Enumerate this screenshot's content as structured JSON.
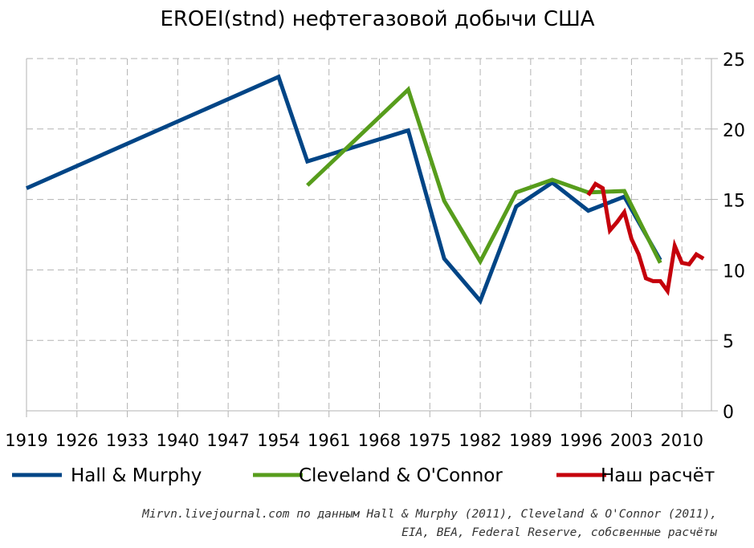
{
  "chart_data": {
    "type": "line",
    "title": "EROEI(stnd) нефтегазовой добычи США",
    "xlabel": "",
    "ylabel": "",
    "xlim": [
      1919,
      2014.1
    ],
    "ylim": [
      0,
      25
    ],
    "x_ticks": [
      1919,
      1926,
      1933,
      1940,
      1947,
      1954,
      1961,
      1968,
      1975,
      1982,
      1989,
      1996,
      2003,
      2010
    ],
    "y_ticks": [
      0,
      5,
      10,
      15,
      20,
      25
    ],
    "y_axis_side": "right",
    "grid": true,
    "legend_position": "bottom",
    "series": [
      {
        "name": "Hall & Murphy",
        "color": "#004586",
        "x": [
          1919,
          1954,
          1958,
          1972,
          1977,
          1982,
          1987,
          1992,
          1997,
          2002,
          2007
        ],
        "y": [
          15.8,
          23.7,
          17.7,
          19.9,
          10.8,
          7.8,
          14.5,
          16.2,
          14.2,
          15.2,
          10.7
        ]
      },
      {
        "name": "Cleveland & O'Connor",
        "color": "#579d1c",
        "x": [
          1958,
          1972,
          1977,
          1982,
          1987,
          1992,
          1997,
          2002,
          2007
        ],
        "y": [
          16.0,
          22.8,
          14.9,
          10.6,
          15.5,
          16.4,
          15.5,
          15.6,
          10.5
        ]
      },
      {
        "name": "Наш расчёт",
        "color": "#c5000b",
        "x": [
          1997,
          1998,
          1999,
          2000,
          2001,
          2002,
          2003,
          2004,
          2005,
          2006,
          2007,
          2008,
          2009,
          2010,
          2011,
          2012,
          2013
        ],
        "y": [
          15.3,
          16.1,
          15.8,
          12.8,
          13.4,
          14.1,
          12.2,
          11.1,
          9.4,
          9.2,
          9.2,
          8.5,
          11.7,
          10.5,
          10.4,
          11.1,
          10.8
        ]
      }
    ],
    "annotations": [
      "Mirvn.livejournal.com по данным Hall & Murphy (2011), Cleveland & O'Connor (2011),",
      "EIA, BEA, Federal Reserve, собсвенные расчёты"
    ]
  }
}
